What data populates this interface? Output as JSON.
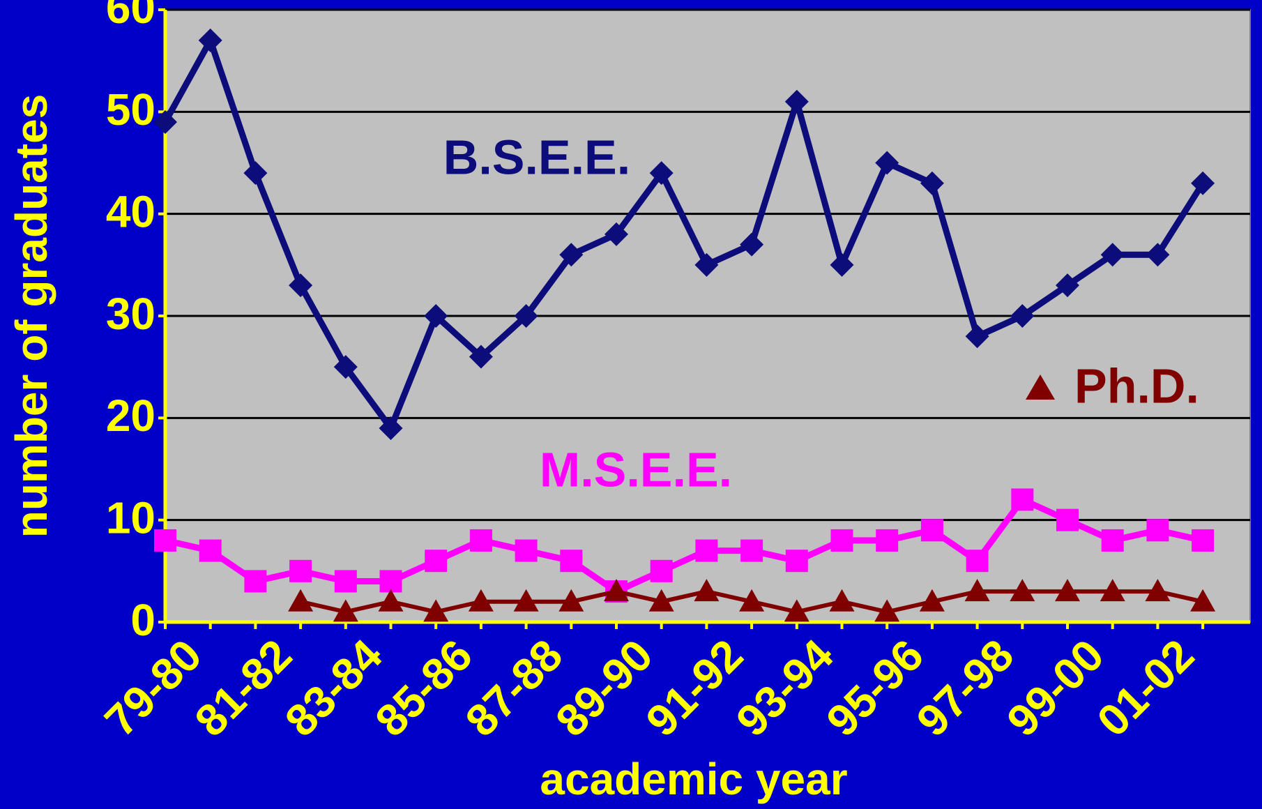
{
  "chart_data": {
    "type": "line",
    "x_label": "academic year",
    "y_label": "number of graduates",
    "categories": [
      "79-80",
      null,
      "81-82",
      null,
      "83-84",
      null,
      "85-86",
      null,
      "87-88",
      null,
      "89-90",
      null,
      "91-92",
      null,
      "93-94",
      null,
      "95-96",
      null,
      "97-98",
      null,
      "99-00",
      null,
      "01-02",
      null
    ],
    "series": [
      {
        "name": "B.S.E.E.",
        "color": "#0c0c7a",
        "marker": "diamond",
        "values": [
          49,
          57,
          44,
          33,
          25,
          19,
          30,
          26,
          30,
          36,
          38,
          44,
          35,
          37,
          51,
          35,
          45,
          43,
          28,
          30,
          33,
          36,
          36,
          43
        ]
      },
      {
        "name": "M.S.E.E.",
        "color": "#ff00ff",
        "marker": "square",
        "values": [
          8,
          7,
          4,
          5,
          4,
          4,
          6,
          8,
          7,
          6,
          3,
          5,
          7,
          7,
          6,
          8,
          8,
          9,
          6,
          12,
          10,
          8,
          9,
          8
        ]
      },
      {
        "name": "Ph.D.",
        "color": "#800000",
        "marker": "triangle",
        "values": [
          null,
          null,
          null,
          2,
          1,
          2,
          1,
          2,
          2,
          2,
          3,
          2,
          3,
          2,
          1,
          2,
          1,
          2,
          3,
          3,
          3,
          3,
          3,
          2
        ]
      }
    ],
    "ylim": [
      0,
      60
    ],
    "yticks": [
      0,
      10,
      20,
      30,
      40,
      50,
      60
    ],
    "grid": true
  }
}
